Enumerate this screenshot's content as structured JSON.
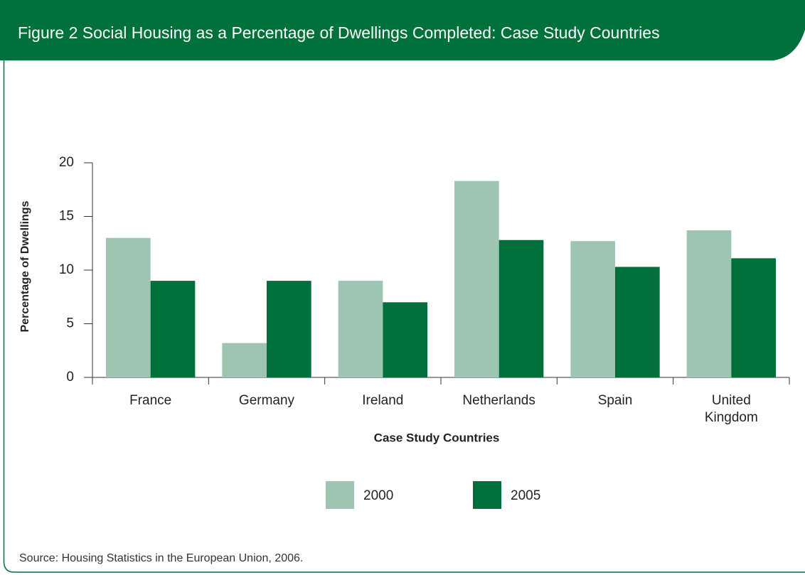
{
  "chart_data": {
    "type": "bar",
    "title": "Figure 2  Social Housing as a Percentage of Dwellings Completed: Case Study Countries",
    "x_label": "Case Study Countries",
    "y_label": "Percentage of Dwellings",
    "categories": [
      "France",
      "Germany",
      "Ireland",
      "Netherlands",
      "Spain",
      "United Kingdom"
    ],
    "series": [
      {
        "name": "2000",
        "color": "#9dc5b2",
        "values": [
          13,
          3.2,
          9,
          18.3,
          12.7,
          13.7
        ]
      },
      {
        "name": "2005",
        "color": "#006f3c",
        "values": [
          9,
          9,
          7,
          12.8,
          10.3,
          11.1
        ]
      }
    ],
    "ylim": [
      0,
      20
    ],
    "yticks": [
      0,
      5,
      10,
      15,
      20
    ],
    "grid": false,
    "legend": "bottom",
    "source": "Source: Housing Statistics in the European Union, 2006."
  }
}
